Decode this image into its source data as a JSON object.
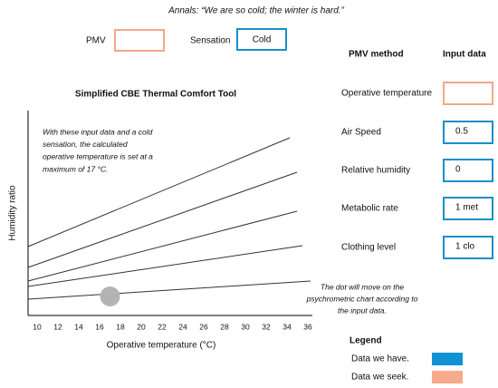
{
  "quote": "Annals: “We are so cold; the winter is hard.”",
  "status": {
    "pmv_label": "PMV",
    "pmv_value": "",
    "sensation_label": "Sensation",
    "sensation_value": "Cold"
  },
  "inputs": {
    "method_header": "PMV method",
    "data_header": "Input data",
    "rows": [
      {
        "label": "Operative temperature",
        "value": "",
        "state": "seek"
      },
      {
        "label": "Air Speed",
        "value": "0.5",
        "state": "have"
      },
      {
        "label": "Relative humidity",
        "value": "0",
        "state": "have"
      },
      {
        "label": "Metabolic rate",
        "value": "1 met",
        "state": "have"
      },
      {
        "label": "Clothing level",
        "value": "1 clo",
        "state": "have"
      }
    ]
  },
  "chart": {
    "title": "Simplified CBE Thermal Comfort Tool",
    "xlabel": "Operative temperature (°C)",
    "ylabel": "Humidity ratio",
    "xlim": [
      9.4,
      36.3
    ],
    "xticks": [
      10,
      12,
      14,
      16,
      18,
      20,
      22,
      24,
      26,
      28,
      30,
      32,
      34,
      36
    ],
    "point": {
      "x": 17
    },
    "annotation": [
      "With these input data and a cold",
      "sensation, the calculated",
      "operative temperature is set at a",
      "maximum of 17 °C."
    ]
  },
  "note": [
    "The dot will move on the",
    "psychrometric chart according to",
    "the input data."
  ],
  "legend": {
    "title": "Legend",
    "items": [
      {
        "label": "Data we have.",
        "color": "#1192d4"
      },
      {
        "label": "Data we seek.",
        "color": "#f7ab8c"
      }
    ]
  },
  "colors": {
    "have": "#1a8fc9",
    "seek": "#f2a886"
  }
}
